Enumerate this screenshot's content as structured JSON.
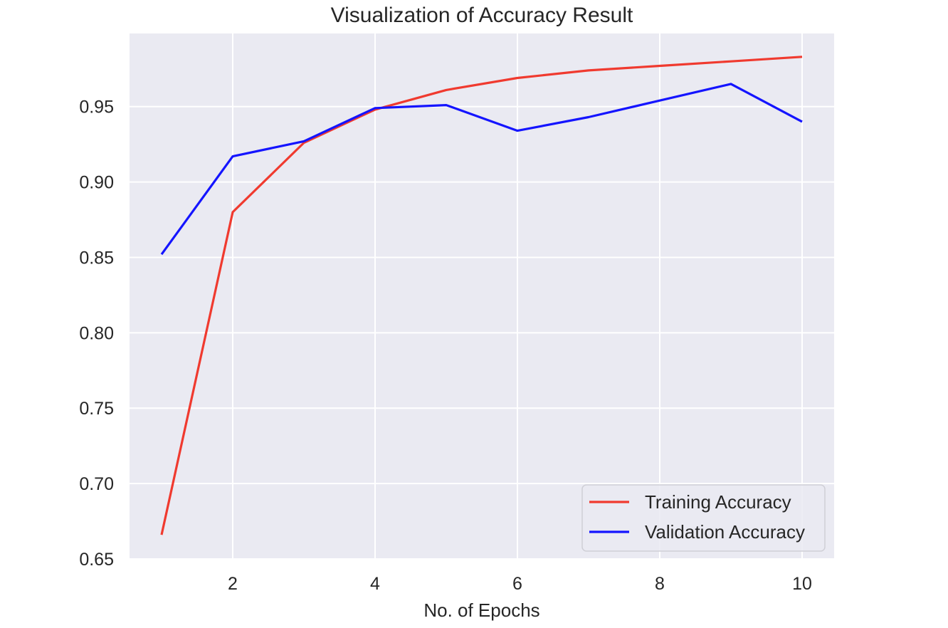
{
  "chart_data": {
    "type": "line",
    "title": "Visualization of Accuracy Result",
    "xlabel": "No. of Epochs",
    "ylabel": "",
    "x": [
      1,
      2,
      3,
      4,
      5,
      6,
      7,
      8,
      9,
      10
    ],
    "xlim": [
      0.55,
      10.45
    ],
    "ylim": [
      0.65,
      0.9985
    ],
    "xticks": [
      2,
      4,
      6,
      8,
      10
    ],
    "xtick_labels": [
      "2",
      "4",
      "6",
      "8",
      "10"
    ],
    "yticks": [
      0.65,
      0.7,
      0.75,
      0.8,
      0.85,
      0.9,
      0.95
    ],
    "ytick_labels": [
      "0.65",
      "0.70",
      "0.75",
      "0.80",
      "0.85",
      "0.90",
      "0.95"
    ],
    "grid": true,
    "legend_position": "lower-right",
    "background_color": "#EAEAF2",
    "grid_color": "#FFFFFF",
    "series": [
      {
        "name": "Training Accuracy",
        "color": "#F03A2F",
        "values": [
          0.666,
          0.88,
          0.926,
          0.948,
          0.961,
          0.969,
          0.974,
          0.977,
          0.98,
          0.983
        ]
      },
      {
        "name": "Validation Accuracy",
        "color": "#1414FF",
        "values": [
          0.852,
          0.917,
          0.927,
          0.949,
          0.951,
          0.934,
          0.943,
          0.954,
          0.965,
          0.94
        ]
      }
    ]
  }
}
